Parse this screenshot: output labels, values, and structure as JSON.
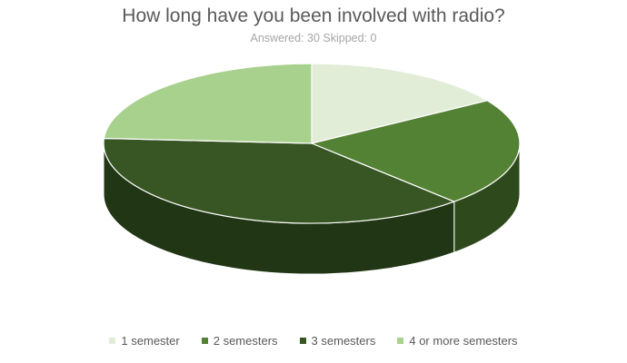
{
  "chart_data": {
    "type": "pie",
    "style": "3d",
    "title": "How long have you been involved with radio?",
    "subtitle": "Answered: 30 Skipped: 0",
    "categories": [
      "1 semester",
      "2 semesters",
      "3 semesters",
      "4 or more semesters"
    ],
    "values": [
      0.16,
      0.22,
      0.38,
      0.24
    ],
    "colors": [
      "#e2edd8",
      "#548235",
      "#375623",
      "#a9d18e"
    ],
    "side_colors": [
      "#a2ad98",
      "#2e4a1c",
      "#213615",
      "#6f8f5a"
    ],
    "legend_position": "bottom"
  }
}
